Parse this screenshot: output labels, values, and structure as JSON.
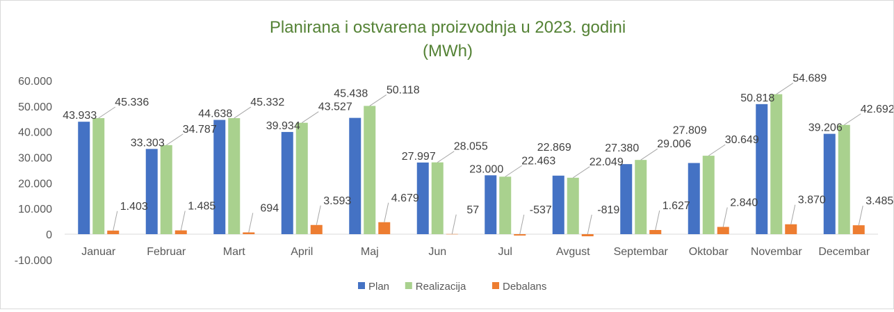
{
  "chart_data": {
    "type": "bar",
    "title": "Planirana i ostvarena proizvodnja u 2023. godini",
    "subtitle": "(MWh)",
    "xlabel": "",
    "ylabel": "",
    "ylim": [
      -10000,
      60000
    ],
    "yticks": [
      -10000,
      0,
      10000,
      20000,
      30000,
      40000,
      50000,
      60000
    ],
    "ytick_labels": [
      "-10.000",
      "0",
      "10.000",
      "20.000",
      "30.000",
      "40.000",
      "50.000",
      "60.000"
    ],
    "grid": false,
    "legend_position": "bottom",
    "categories": [
      "Januar",
      "Februar",
      "Mart",
      "April",
      "Maj",
      "Jun",
      "Jul",
      "Avgust",
      "Septembar",
      "Oktobar",
      "Novembar",
      "Decembar"
    ],
    "series": [
      {
        "name": "Plan",
        "color": "#4472c4",
        "values": [
          43933,
          33303,
          44638,
          39934,
          45438,
          27997,
          23000,
          22869,
          27380,
          27809,
          50818,
          39206
        ],
        "labels": [
          "43.933",
          "33.303",
          "44.638",
          "39.934",
          "45.438",
          "27.997",
          "23.000",
          "22.869",
          "27.380",
          "27.809",
          "50.818",
          "39.206"
        ]
      },
      {
        "name": "Realizacija",
        "color": "#a9d18e",
        "values": [
          45336,
          34787,
          45332,
          43527,
          50118,
          28055,
          22463,
          22049,
          29006,
          30649,
          54689,
          42692
        ],
        "labels": [
          "45.336",
          "34.787",
          "45.332",
          "43.527",
          "50.118",
          "28.055",
          "22.463",
          "22.049",
          "29.006",
          "30.649",
          "54.689",
          "42.692"
        ]
      },
      {
        "name": "Debalans",
        "color": "#ed7d31",
        "values": [
          1403,
          1485,
          694,
          3593,
          4679,
          57,
          -537,
          -819,
          1627,
          2840,
          3870,
          3485
        ],
        "labels": [
          "1.403",
          "1.485",
          "694",
          "3.593",
          "4.679",
          "57",
          "-537",
          "-819",
          "1.627",
          "2.840",
          "3.870",
          "3.485"
        ]
      }
    ]
  },
  "colors": {
    "title": "#548235",
    "axis_text": "#595959",
    "leader": "#a6a6a6"
  }
}
